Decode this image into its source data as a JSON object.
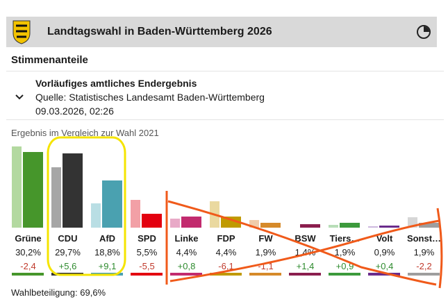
{
  "header": {
    "title": "Landtagswahl in Baden-Württemberg 2026"
  },
  "section_title": "Stimmenanteile",
  "info": {
    "line1": "Vorläufiges amtliches Endergebnis",
    "line2": "Quelle: Statistisches Landesamt Baden-Württemberg",
    "line3": "09.03.2026, 02:26"
  },
  "caption": "Ergebnis im Vergleich zur Wahl 2021",
  "turnout": "Wahlbeteiligung: 69,6%",
  "chart_data": {
    "type": "bar",
    "categories": [
      "Grüne",
      "CDU",
      "AfD",
      "SPD",
      "Linke",
      "FDP",
      "FW",
      "BSW",
      "Tiers…",
      "Volt",
      "Sonst…"
    ],
    "series": [
      {
        "values": [
          32.6,
          24.1,
          9.7,
          11.0,
          3.6,
          10.5,
          3.0,
          0,
          1.0,
          0.5,
          4.1
        ]
      },
      {
        "values": [
          30.2,
          29.7,
          18.8,
          5.5,
          4.4,
          4.4,
          1.9,
          1.4,
          1.9,
          0.9,
          1.9
        ]
      }
    ],
    "pct_labels": [
      "30,2",
      "29,7",
      "18,8",
      "5,5",
      "4,4",
      "4,4",
      "1,9",
      "1,4",
      "1,9",
      "0,9",
      "1,9"
    ],
    "diff_labels": [
      "-2,4",
      "+5,6",
      "+9,1",
      "-5,5",
      "+0,8",
      "-6,1",
      "-1,1",
      "+1,4",
      "+0,9",
      "+0,4",
      "-2,2"
    ],
    "colors": [
      "#46962b",
      "#333333",
      "#4aa1b0",
      "#e3000f",
      "#c22b6e",
      "#c09a00",
      "#d68a2a",
      "#8b1e4e",
      "#3c9a3c",
      "#6a2c8c",
      "#9e9e9e"
    ],
    "prev_colors": [
      "#b3d9a0",
      "#a6a6a6",
      "#b9dee4",
      "#f2a0a6",
      "#e8a9c7",
      "#ead9a0",
      "#f0ccaa",
      "#d9b3c3",
      "#b8ddb8",
      "#cdb8de",
      "#d6d6d6"
    ]
  }
}
